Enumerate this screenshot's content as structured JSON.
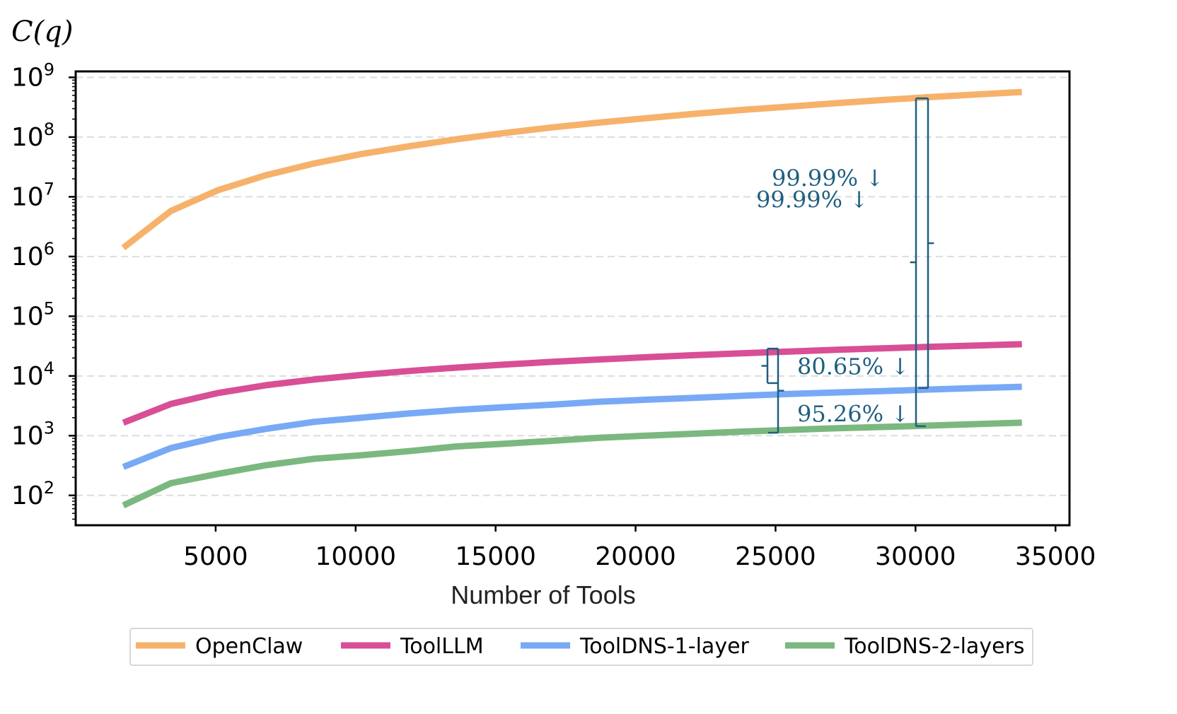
{
  "chart_data": {
    "type": "line",
    "title": "",
    "xlabel": "Number of Tools",
    "ylabel": "C(q)",
    "xlim": [
      0,
      35500
    ],
    "ylim_log10": [
      1.5,
      9.1
    ],
    "y_scale": "log",
    "grid": "y dashed",
    "legend_placement": "bottom",
    "x_ticks": [
      5000,
      10000,
      15000,
      20000,
      25000,
      30000,
      35000
    ],
    "x_tick_labels": [
      "5000",
      "10000",
      "15000",
      "20000",
      "25000",
      "30000",
      "35000"
    ],
    "y_ticks_log10": [
      2,
      3,
      4,
      5,
      6,
      7,
      8,
      9
    ],
    "y_tick_base": "10",
    "y_tick_exponents": [
      "2",
      "3",
      "4",
      "5",
      "6",
      "7",
      "8",
      "9"
    ],
    "x": [
      1700,
      3400,
      5100,
      6800,
      8500,
      10200,
      11900,
      13600,
      15300,
      17000,
      18700,
      20400,
      22100,
      23800,
      25500,
      27200,
      28900,
      30600,
      32300,
      33800
    ],
    "series": [
      {
        "name": "OpenClaw",
        "color": "#f6b26b",
        "values": [
          1400000,
          5800000,
          13000000,
          23000000,
          36000000,
          52000000,
          70000000,
          92000000,
          117000000,
          145000000,
          175000000,
          208000000,
          245000000,
          285000000,
          325000000,
          370000000,
          420000000,
          470000000,
          520000000,
          570000000
        ]
      },
      {
        "name": "ToolLLM",
        "color": "#d84f96",
        "values": [
          1650,
          3400,
          5200,
          7000,
          8700,
          10400,
          12100,
          13800,
          15500,
          17200,
          18900,
          20600,
          22300,
          24000,
          25700,
          27400,
          29100,
          30800,
          32500,
          34000
        ]
      },
      {
        "name": "ToolDNS-1-layer",
        "color": "#78a9f5",
        "values": [
          300,
          620,
          950,
          1300,
          1700,
          2000,
          2350,
          2700,
          3000,
          3300,
          3700,
          4000,
          4300,
          4650,
          5000,
          5300,
          5600,
          5950,
          6300,
          6600
        ]
      },
      {
        "name": "ToolDNS-2-layers",
        "color": "#7ab87f",
        "values": [
          68,
          160,
          230,
          320,
          410,
          470,
          550,
          660,
          730,
          820,
          920,
          1000,
          1080,
          1170,
          1250,
          1330,
          1400,
          1480,
          1570,
          1650
        ]
      }
    ],
    "annotations": [
      {
        "text": "99.99% ↓",
        "between": [
          "OpenClaw",
          "ToolDNS-1-layer"
        ]
      },
      {
        "text": "99.99% ↓",
        "between": [
          "OpenClaw",
          "ToolDNS-2-layers"
        ]
      },
      {
        "text": "80.65% ↓",
        "between": [
          "ToolLLM",
          "ToolDNS-1-layer"
        ]
      },
      {
        "text": "95.26% ↓",
        "between": [
          "ToolLLM",
          "ToolDNS-2-layers"
        ]
      }
    ],
    "annotation_color": "#1f5f80"
  }
}
